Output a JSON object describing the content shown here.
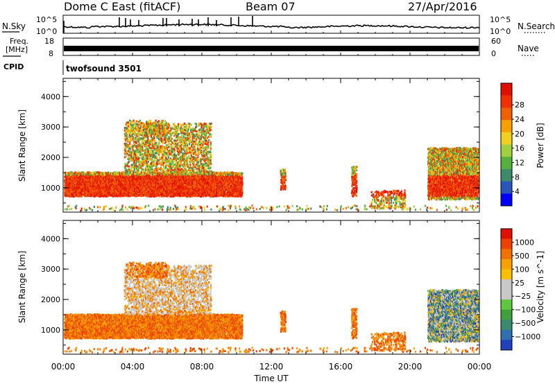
{
  "header": {
    "title": "Dome C East (fitACF)",
    "beam": "Beam 07",
    "date": "27/Apr/2016"
  },
  "nsky_panel": {
    "left_label": "N.Sky",
    "right_label": "N.Search",
    "tick_top": "10^5",
    "tick_bottom": "10^0"
  },
  "freq_panel": {
    "left_label_line1": "Freq.",
    "left_label_line2": "[MHz]",
    "right_label": "Nave",
    "left_ticks": [
      "18",
      "8"
    ],
    "right_ticks": [
      "60",
      "0"
    ]
  },
  "cpid_panel": {
    "label": "CPID",
    "value": "twofsound 3501"
  },
  "chart_data": [
    {
      "type": "heatmap",
      "name": "power",
      "ylabel": "Slant Range [km]",
      "ylim": [
        200,
        4600
      ],
      "yticks": [
        "1000",
        "2000",
        "3000",
        "4000"
      ],
      "colorbar_label": "Power [dB]",
      "colorbar_ticks": [
        "4",
        "8",
        "12",
        "16",
        "20",
        "24",
        "28"
      ],
      "colorbar_colors": [
        "#0000ff",
        "#2a55bb",
        "#3f8a6a",
        "#55b040",
        "#a0d040",
        "#f0d020",
        "#f8a000",
        "#f06000",
        "#f03000",
        "#e01000"
      ]
    },
    {
      "type": "heatmap",
      "name": "velocity",
      "ylabel": "Slant Range [km]",
      "ylim": [
        200,
        4600
      ],
      "yticks": [
        "1000",
        "2000",
        "3000",
        "4000"
      ],
      "colorbar_label": "Velocity [m s^-1]",
      "colorbar_ticks": [
        "1000",
        "500",
        "100",
        "25",
        "−25",
        "−100",
        "−500",
        "−1000"
      ],
      "colorbar_colors": [
        "#2040c0",
        "#3070b0",
        "#3a8a70",
        "#40a040",
        "#60c840",
        "#c8c8c8",
        "#c8c8c8",
        "#f8c000",
        "#f8a000",
        "#f07000",
        "#f04000",
        "#e01000"
      ]
    }
  ],
  "x_axis": {
    "label": "Time UT",
    "ticks": [
      "00:00",
      "04:00",
      "08:00",
      "12:00",
      "16:00",
      "20:00",
      "00:00"
    ]
  }
}
